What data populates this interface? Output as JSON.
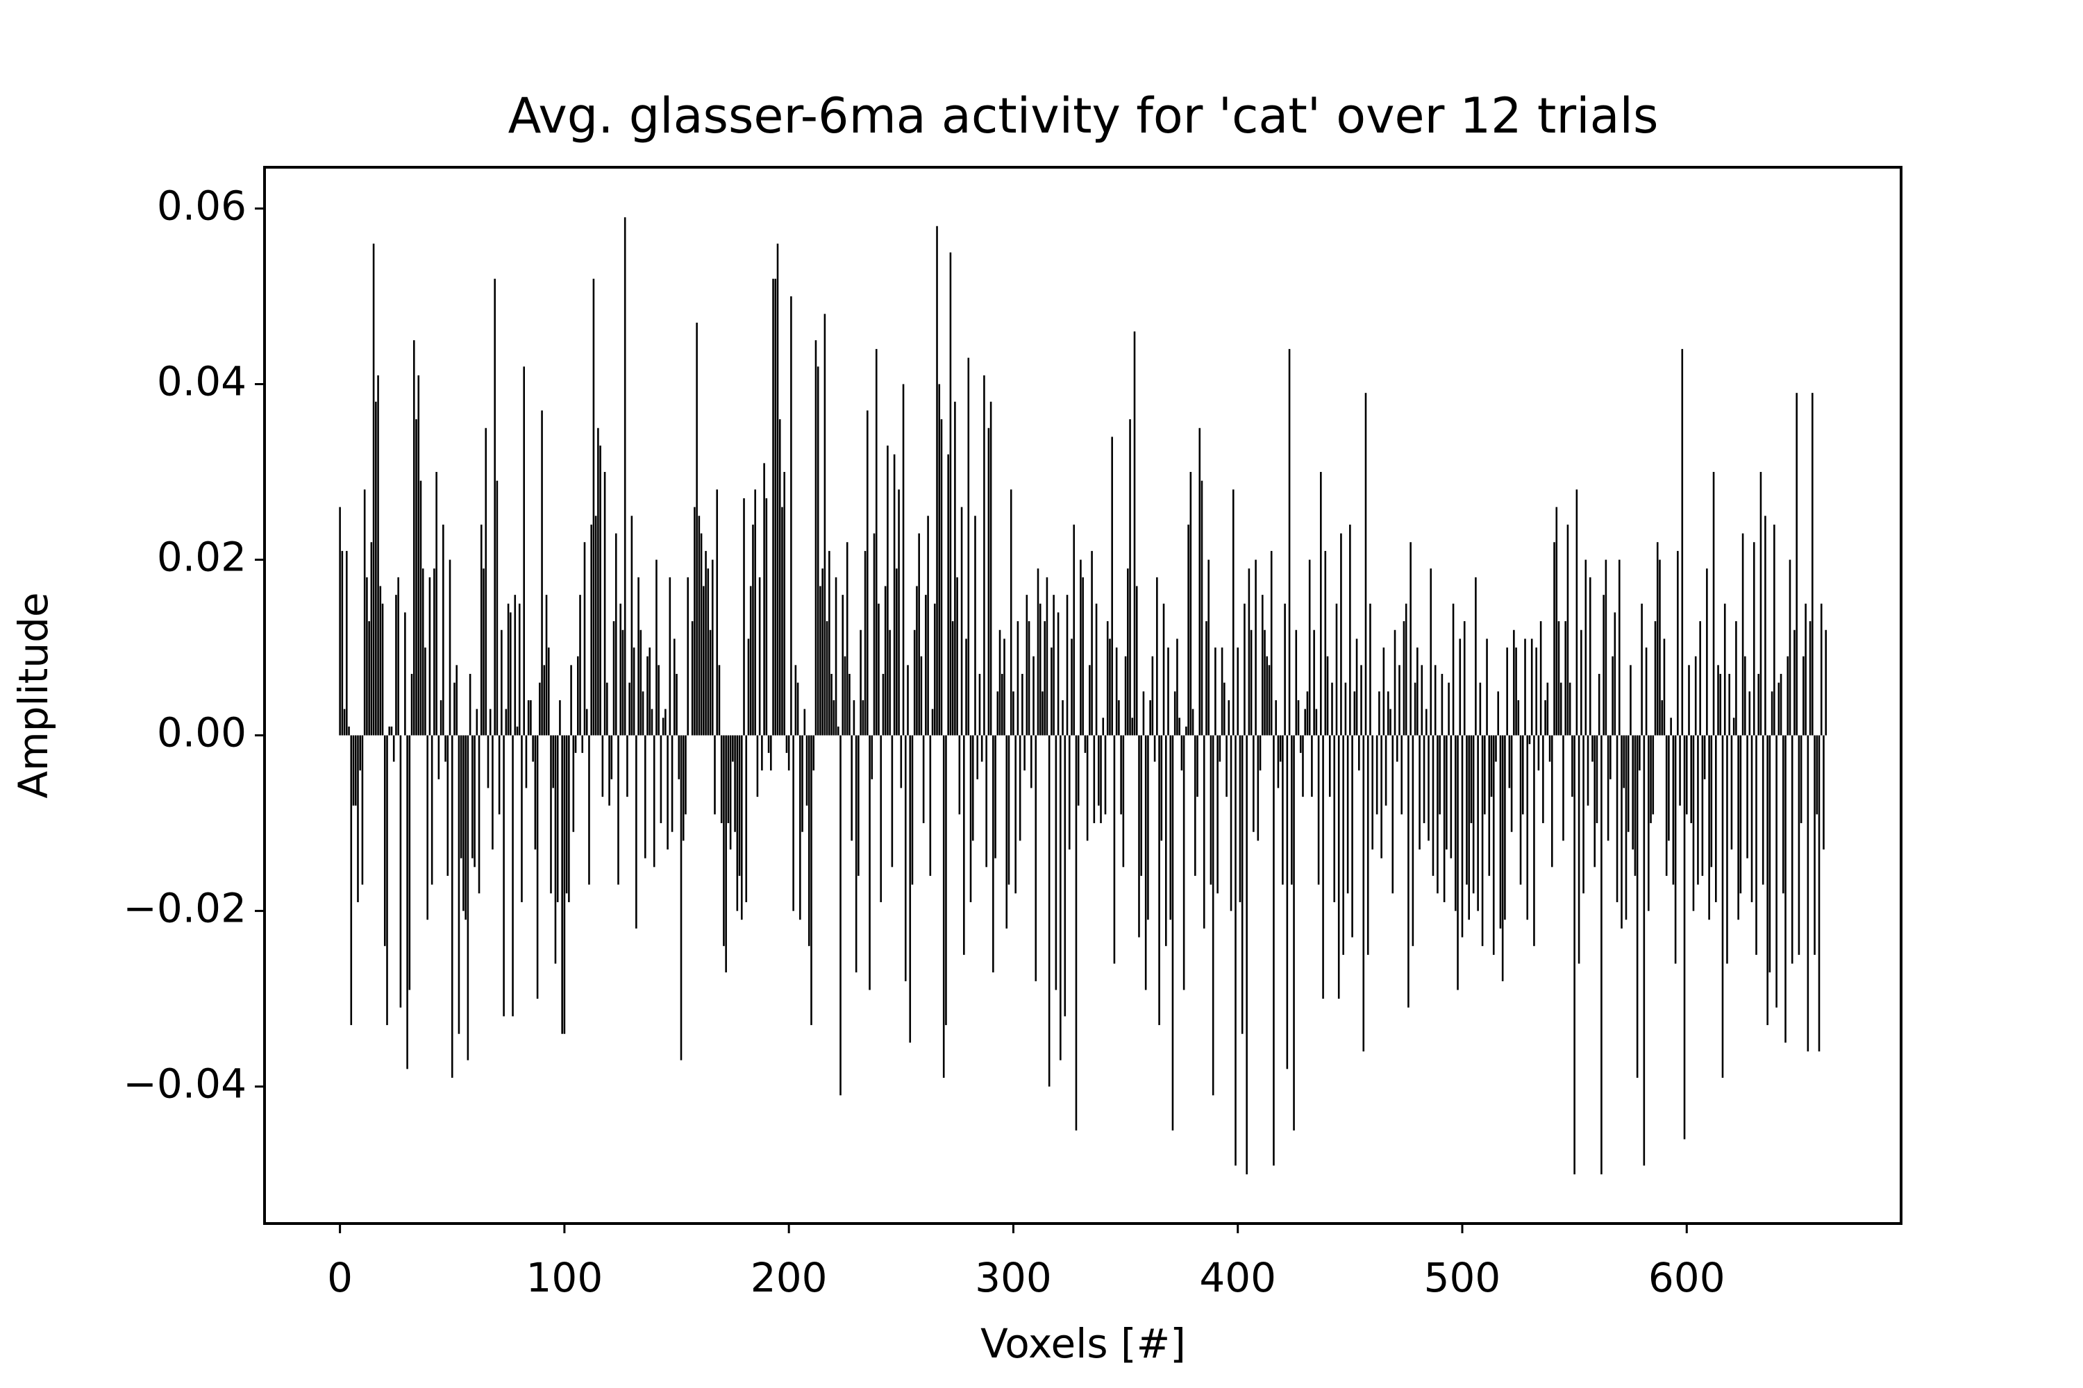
{
  "chart_data": {
    "type": "bar",
    "title": "Avg. glasser-6ma activity for 'cat' over 12 trials",
    "xlabel": "Voxels [#]",
    "ylabel": "Amplitude",
    "color": "#000000",
    "xlim": [
      -33.6,
      695.5
    ],
    "ylim": [
      -0.0556,
      0.0647
    ],
    "xticks": [
      0,
      100,
      200,
      300,
      400,
      500,
      600
    ],
    "yticks": [
      {
        "value": -0.04,
        "label": "−0.04"
      },
      {
        "value": -0.02,
        "label": "−0.02"
      },
      {
        "value": 0,
        "label": "0.00"
      },
      0.02,
      0.04,
      0.06
    ],
    "values": [
      0.026,
      0.021,
      0.003,
      0.021,
      0.001,
      -0.033,
      -0.008,
      -0.008,
      -0.019,
      -0.004,
      -0.017,
      0.028,
      0.018,
      0.013,
      0.022,
      0.056,
      0.038,
      0.041,
      0.017,
      0.015,
      -0.024,
      -0.033,
      0.001,
      0.001,
      -0.003,
      0.016,
      0.018,
      -0.031,
      0.0,
      0.014,
      -0.038,
      -0.029,
      0.007,
      0.045,
      0.036,
      0.041,
      0.029,
      0.019,
      0.01,
      -0.021,
      0.018,
      -0.017,
      0.019,
      0.03,
      -0.005,
      0.004,
      0.024,
      -0.003,
      -0.016,
      0.02,
      -0.039,
      0.006,
      0.008,
      -0.034,
      -0.014,
      -0.02,
      -0.021,
      -0.037,
      0.007,
      -0.014,
      -0.015,
      0.003,
      -0.018,
      0.024,
      0.019,
      0.035,
      -0.006,
      0.003,
      -0.013,
      0.052,
      0.029,
      -0.009,
      0.012,
      -0.032,
      0.003,
      0.015,
      0.014,
      -0.032,
      0.016,
      0.001,
      0.015,
      -0.019,
      0.042,
      -0.006,
      0.004,
      0.004,
      -0.003,
      -0.013,
      -0.03,
      0.006,
      0.037,
      0.008,
      0.016,
      0.01,
      -0.018,
      -0.006,
      -0.026,
      -0.019,
      0.004,
      -0.034,
      -0.034,
      -0.018,
      -0.019,
      0.008,
      -0.011,
      -0.002,
      0.009,
      0.016,
      -0.002,
      0.022,
      0.003,
      -0.017,
      0.024,
      0.052,
      0.025,
      0.035,
      0.033,
      -0.007,
      0.03,
      0.006,
      -0.008,
      -0.005,
      0.013,
      0.023,
      -0.017,
      0.015,
      0.012,
      0.059,
      -0.007,
      0.006,
      0.025,
      0.01,
      -0.022,
      0.018,
      0.012,
      0.005,
      -0.014,
      0.009,
      0.01,
      0.003,
      -0.015,
      0.02,
      0.008,
      -0.01,
      0.002,
      0.003,
      -0.013,
      0.018,
      -0.011,
      0.011,
      0.007,
      -0.005,
      -0.037,
      -0.012,
      -0.009,
      0.018,
      0.0,
      0.013,
      0.026,
      0.047,
      0.025,
      0.023,
      0.017,
      0.021,
      0.019,
      0.012,
      0.02,
      -0.009,
      0.028,
      0.008,
      -0.01,
      -0.024,
      -0.027,
      -0.01,
      -0.013,
      -0.003,
      -0.011,
      -0.02,
      -0.016,
      -0.021,
      0.027,
      -0.019,
      0.011,
      0.017,
      0.024,
      0.028,
      -0.007,
      0.018,
      -0.004,
      0.031,
      0.027,
      -0.002,
      -0.004,
      0.052,
      0.052,
      0.056,
      0.036,
      0.026,
      0.03,
      -0.002,
      -0.004,
      0.05,
      -0.02,
      0.008,
      0.006,
      -0.021,
      -0.011,
      0.003,
      -0.008,
      -0.024,
      -0.033,
      -0.004,
      0.045,
      0.042,
      0.017,
      0.019,
      0.048,
      0.013,
      0.021,
      0.007,
      0.004,
      0.018,
      0.001,
      -0.041,
      0.016,
      0.009,
      0.022,
      0.007,
      -0.012,
      0.004,
      -0.027,
      -0.016,
      0.012,
      0.004,
      0.021,
      0.037,
      -0.029,
      -0.005,
      0.023,
      0.044,
      0.015,
      -0.019,
      0.007,
      0.017,
      0.033,
      0.012,
      -0.015,
      0.032,
      0.019,
      0.028,
      -0.006,
      0.04,
      -0.028,
      0.008,
      -0.035,
      -0.017,
      0.012,
      0.017,
      0.023,
      0.009,
      -0.01,
      0.016,
      0.025,
      -0.016,
      0.003,
      0.015,
      0.058,
      0.04,
      0.036,
      -0.039,
      -0.033,
      0.032,
      0.055,
      0.013,
      0.038,
      0.018,
      -0.009,
      0.026,
      -0.025,
      0.011,
      0.043,
      -0.019,
      -0.012,
      0.025,
      -0.005,
      0.007,
      -0.003,
      0.041,
      -0.015,
      0.035,
      0.038,
      -0.027,
      -0.014,
      0.005,
      0.012,
      0.007,
      0.011,
      -0.022,
      -0.017,
      0.028,
      0.005,
      -0.018,
      0.013,
      -0.012,
      0.007,
      -0.004,
      0.016,
      0.013,
      -0.006,
      0.009,
      -0.028,
      0.019,
      0.015,
      0.005,
      0.013,
      0.018,
      -0.04,
      0.01,
      0.016,
      -0.029,
      0.014,
      -0.037,
      0.004,
      -0.032,
      0.016,
      -0.013,
      0.011,
      0.024,
      -0.045,
      -0.008,
      0.02,
      0.018,
      -0.002,
      -0.012,
      0.008,
      0.021,
      -0.01,
      0.015,
      -0.008,
      -0.01,
      0.002,
      -0.009,
      0.013,
      0.011,
      0.034,
      -0.026,
      0.01,
      0.004,
      -0.009,
      -0.015,
      0.009,
      0.019,
      0.036,
      0.002,
      0.046,
      0.017,
      -0.023,
      -0.016,
      0.005,
      -0.029,
      -0.021,
      0.004,
      0.009,
      -0.003,
      0.018,
      -0.033,
      -0.012,
      0.015,
      -0.024,
      0.01,
      -0.021,
      -0.045,
      0.005,
      0.011,
      0.002,
      -0.004,
      -0.029,
      0.001,
      0.024,
      0.03,
      0.003,
      -0.016,
      -0.007,
      0.035,
      0.029,
      -0.022,
      0.013,
      0.02,
      -0.017,
      -0.041,
      0.01,
      -0.018,
      -0.003,
      0.01,
      0.006,
      -0.007,
      0.004,
      -0.02,
      0.028,
      -0.049,
      0.01,
      -0.019,
      -0.034,
      0.015,
      -0.05,
      0.019,
      0.012,
      -0.011,
      0.02,
      -0.012,
      -0.004,
      0.016,
      0.012,
      0.009,
      0.008,
      0.021,
      -0.049,
      0.004,
      -0.006,
      -0.003,
      -0.017,
      0.015,
      -0.038,
      0.044,
      -0.017,
      -0.045,
      0.012,
      0.004,
      -0.002,
      -0.007,
      0.003,
      0.005,
      0.02,
      -0.007,
      0.012,
      0.003,
      -0.017,
      0.03,
      -0.03,
      0.021,
      0.009,
      -0.007,
      0.006,
      -0.019,
      0.015,
      -0.03,
      0.023,
      -0.025,
      0.006,
      -0.018,
      0.024,
      -0.023,
      0.005,
      0.011,
      -0.004,
      0.008,
      -0.036,
      0.039,
      -0.025,
      0.015,
      -0.013,
      0.0,
      -0.009,
      0.005,
      -0.014,
      0.01,
      -0.008,
      0.005,
      0.003,
      -0.018,
      0.012,
      -0.003,
      0.008,
      -0.009,
      0.013,
      0.015,
      -0.031,
      0.022,
      -0.024,
      0.006,
      0.01,
      -0.013,
      0.008,
      -0.01,
      0.003,
      -0.012,
      0.019,
      -0.016,
      0.008,
      -0.018,
      -0.009,
      0.007,
      -0.019,
      -0.013,
      0.006,
      -0.014,
      0.015,
      -0.02,
      -0.029,
      0.011,
      -0.023,
      0.013,
      -0.017,
      -0.021,
      -0.01,
      -0.018,
      0.018,
      -0.02,
      0.006,
      -0.024,
      -0.009,
      0.011,
      -0.016,
      -0.007,
      -0.025,
      -0.003,
      0.005,
      -0.022,
      -0.028,
      -0.021,
      0.01,
      -0.006,
      -0.011,
      0.012,
      0.01,
      0.004,
      -0.017,
      -0.009,
      0.011,
      -0.021,
      -0.001,
      0.011,
      -0.024,
      0.01,
      -0.004,
      0.013,
      -0.01,
      0.004,
      0.006,
      -0.003,
      -0.015,
      0.022,
      0.026,
      0.013,
      0.006,
      -0.012,
      0.013,
      0.024,
      0.006,
      -0.007,
      -0.05,
      0.028,
      -0.026,
      0.012,
      -0.018,
      0.02,
      -0.008,
      0.018,
      -0.003,
      -0.015,
      -0.01,
      0.007,
      -0.05,
      0.016,
      0.02,
      -0.012,
      -0.005,
      0.009,
      0.014,
      -0.019,
      0.02,
      -0.022,
      -0.006,
      -0.021,
      -0.011,
      0.008,
      -0.013,
      -0.016,
      -0.039,
      -0.004,
      0.015,
      -0.049,
      0.01,
      -0.02,
      -0.01,
      -0.009,
      0.013,
      0.022,
      0.02,
      0.004,
      0.011,
      -0.016,
      -0.012,
      0.002,
      -0.017,
      -0.026,
      0.021,
      -0.008,
      0.044,
      -0.046,
      -0.009,
      0.008,
      -0.01,
      -0.02,
      0.009,
      -0.017,
      0.013,
      -0.016,
      -0.005,
      0.019,
      -0.021,
      -0.015,
      0.03,
      -0.019,
      0.008,
      0.007,
      -0.039,
      0.015,
      -0.026,
      0.007,
      -0.013,
      0.002,
      0.013,
      -0.021,
      -0.018,
      0.023,
      0.009,
      -0.014,
      0.005,
      -0.019,
      0.022,
      -0.025,
      0.007,
      0.03,
      -0.017,
      0.025,
      -0.033,
      -0.027,
      0.005,
      0.024,
      -0.031,
      0.006,
      0.007,
      -0.018,
      -0.035,
      0.009,
      0.02,
      -0.026,
      0.012,
      0.039,
      -0.025,
      -0.01,
      0.009,
      0.015,
      -0.036,
      0.013,
      0.039,
      -0.025,
      -0.009,
      -0.036,
      0.015,
      -0.013,
      0.012
    ]
  }
}
